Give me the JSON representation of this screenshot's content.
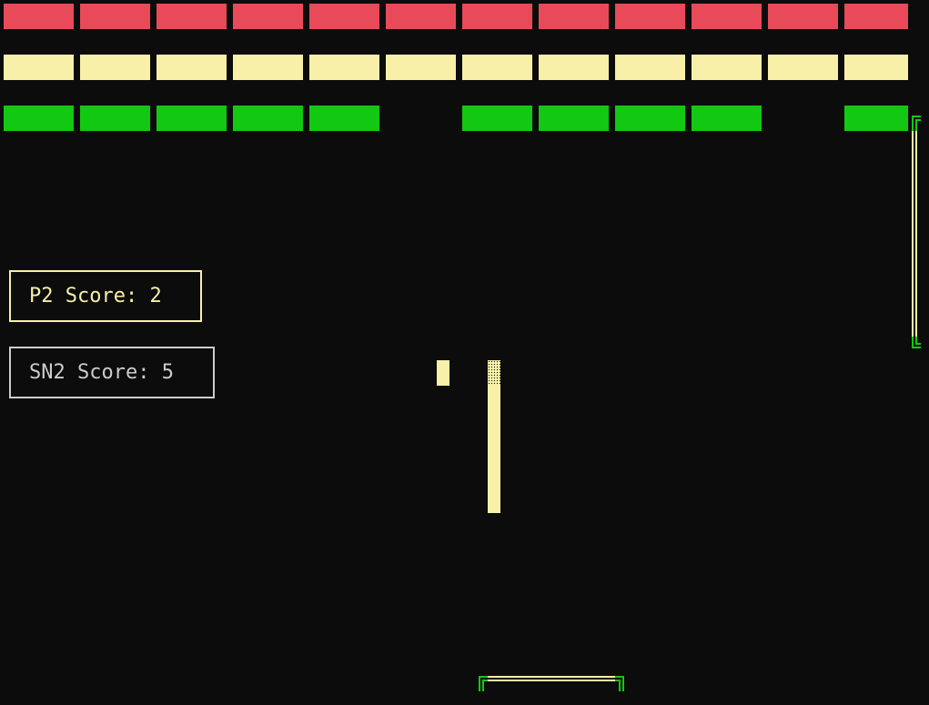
{
  "colors": {
    "background": "#0c0c0c",
    "red": "#e84a5a",
    "yellow": "#f8f0a8",
    "green": "#12c812",
    "gray": "#cccccc"
  },
  "bricks": {
    "rows": [
      {
        "color": "red",
        "present": [
          1,
          1,
          1,
          1,
          1,
          1,
          1,
          1,
          1,
          1,
          1,
          1
        ]
      },
      {
        "color": "yellow",
        "present": [
          1,
          1,
          1,
          1,
          1,
          1,
          1,
          1,
          1,
          1,
          1,
          1
        ]
      },
      {
        "color": "green",
        "present": [
          1,
          1,
          1,
          1,
          1,
          0,
          1,
          1,
          1,
          1,
          0,
          1
        ]
      }
    ]
  },
  "scores": {
    "p2": "P2 Score: 2",
    "sn2": "SN2 Score: 5"
  }
}
